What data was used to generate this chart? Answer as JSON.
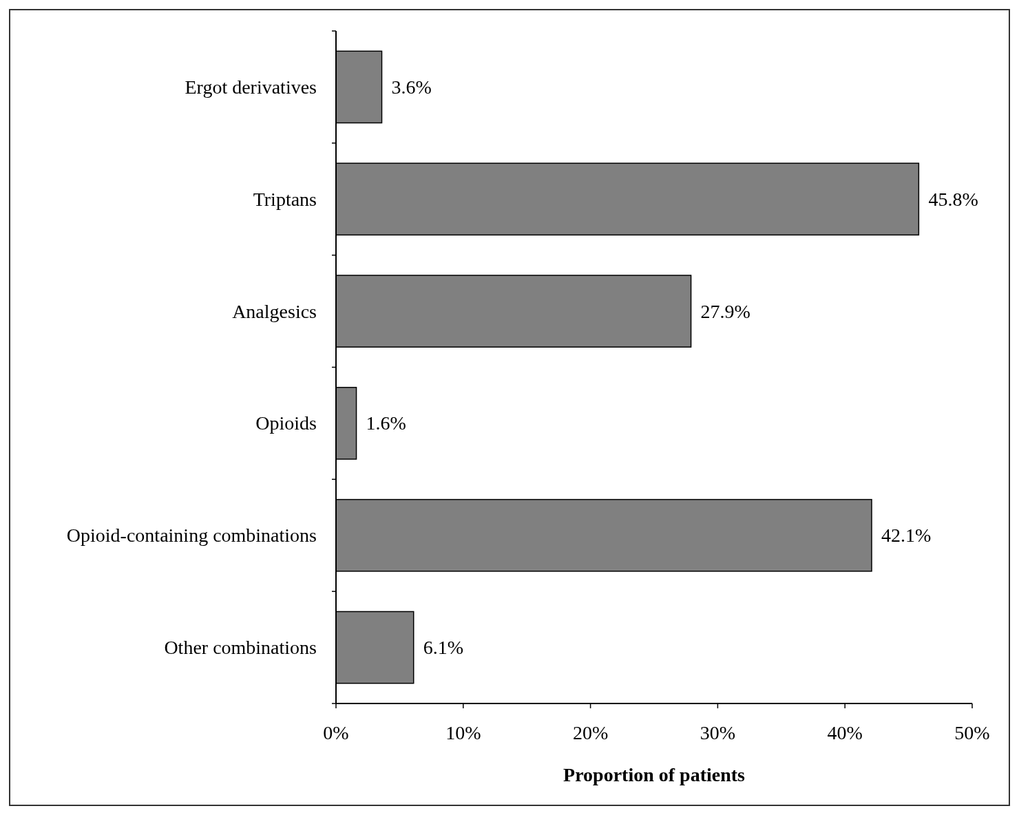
{
  "chart_data": {
    "type": "bar",
    "orientation": "horizontal",
    "xlabel": "Proportion of patients",
    "categories": [
      "Ergot derivatives",
      "Triptans",
      "Analgesics",
      "Opioids",
      "Opioid-containing combinations",
      "Other combinations"
    ],
    "values": [
      3.6,
      45.8,
      27.9,
      1.6,
      42.1,
      6.1
    ],
    "value_labels": [
      "3.6%",
      "45.8%",
      "27.9%",
      "1.6%",
      "42.1%",
      "6.1%"
    ],
    "color": "#808080",
    "xlim": [
      0,
      50
    ],
    "xticks": [
      {
        "value": 0,
        "label": "0%"
      },
      {
        "value": 10,
        "label": "10%"
      },
      {
        "value": 20,
        "label": "20%"
      },
      {
        "value": 30,
        "label": "30%"
      },
      {
        "value": 40,
        "label": "40%"
      },
      {
        "value": 50,
        "label": "50%"
      }
    ],
    "grid": false
  }
}
